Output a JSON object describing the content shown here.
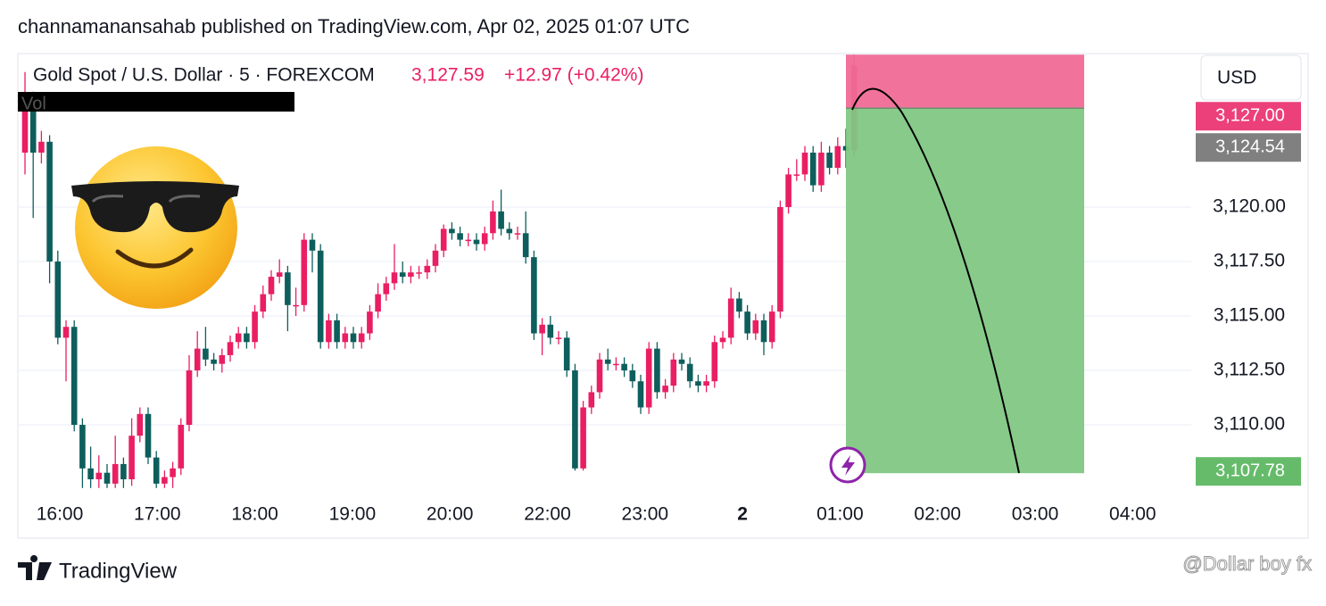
{
  "header": {
    "title": "channamanansahab published on TradingView.com, Apr 02, 2025 01:07 UTC"
  },
  "footer": {
    "brand": "TradingView",
    "watermark": "@Dollar boy fx"
  },
  "chart_data": {
    "type": "candlestick",
    "symbol": "Gold Spot / U.S. Dollar · 5 · FOREXCOM",
    "last_price": "3,127.59",
    "change": "+12.97 (+0.42%)",
    "volume_label": "Vol",
    "currency": "USD",
    "time_labels": [
      "16:00",
      "17:00",
      "18:00",
      "19:00",
      "20:00",
      "22:00",
      "23:00",
      "2",
      "01:00",
      "02:00",
      "03:00",
      "04:00"
    ],
    "up_color": "#e91e63",
    "down_color": "#0d5e5c",
    "grid": true,
    "ylim": [
      3107.05,
      3127.05
    ],
    "yticks": [
      {
        "value": 3110,
        "label": "3,110.00"
      },
      {
        "value": 3112.5,
        "label": "3,112.50"
      },
      {
        "value": 3115,
        "label": "3,115.00"
      },
      {
        "value": 3117.5,
        "label": "3,117.50"
      },
      {
        "value": 3120,
        "label": "3,120.00"
      }
    ],
    "open": [
      3122.5,
      3125.0,
      3122.5,
      3123.0,
      3117.5,
      3114.0,
      3114.5,
      3110.0,
      3108.0,
      3107.5,
      3107.8,
      3107.3,
      3108.2,
      3107.5,
      3109.5,
      3110.5,
      3108.5,
      3107.3,
      3107.6,
      3108.0,
      3110.0,
      3112.5,
      3113.5,
      3113.0,
      3112.8,
      3113.2,
      3113.8,
      3114.2,
      3113.8,
      3115.2,
      3116.0,
      3116.8,
      3117.0,
      3115.5,
      3115.5,
      3118.5,
      3118.0,
      3113.8,
      3114.8,
      3113.8,
      3114.2,
      3113.8,
      3114.2,
      3115.2,
      3116.0,
      3116.5,
      3117.0,
      3116.8,
      3117.0,
      3117.0,
      3117.3,
      3118.0,
      3119.0,
      3118.8,
      3118.5,
      3118.5,
      3118.3,
      3118.8,
      3119.8,
      3119.0,
      3118.8,
      3118.8,
      3117.7,
      3114.2,
      3114.6,
      3114.0,
      3114.0,
      3112.5,
      3108.0,
      3110.8,
      3111.5,
      3113.0,
      3112.8,
      3112.8,
      3112.5,
      3112.0,
      3110.8,
      3113.5,
      3111.5,
      3111.8,
      3113.0,
      3112.8,
      3112.0,
      3111.8,
      3112.0,
      3113.8,
      3114.0,
      3115.8,
      3115.2,
      3114.2,
      3114.8,
      3113.8,
      3115.2,
      3120.0,
      3121.5,
      3121.5,
      3122.5,
      3121.0,
      3122.5,
      3121.8,
      3122.8,
      3122.6
    ],
    "high": [
      3126.2,
      3125.3,
      3123.5,
      3123.3,
      3118.0,
      3114.8,
      3114.8,
      3110.3,
      3109.0,
      3108.6,
      3108.2,
      3109.5,
      3108.5,
      3110.3,
      3110.8,
      3110.8,
      3108.8,
      3107.9,
      3108.3,
      3110.3,
      3113.2,
      3114.3,
      3114.5,
      3113.3,
      3113.5,
      3114.1,
      3114.5,
      3114.5,
      3115.5,
      3116.4,
      3117.1,
      3117.6,
      3117.3,
      3116.3,
      3118.8,
      3118.8,
      3118.3,
      3115.1,
      3115.1,
      3114.5,
      3114.5,
      3114.5,
      3115.5,
      3116.5,
      3116.8,
      3118.3,
      3117.5,
      3117.3,
      3117.3,
      3117.6,
      3118.3,
      3119.2,
      3119.3,
      3119.1,
      3118.8,
      3118.8,
      3119.1,
      3120.3,
      3120.8,
      3119.3,
      3119.1,
      3119.8,
      3118.0,
      3114.9,
      3115.0,
      3114.3,
      3114.3,
      3112.8,
      3111.1,
      3111.8,
      3113.3,
      3113.5,
      3113.1,
      3113.1,
      3112.8,
      3112.3,
      3113.8,
      3113.8,
      3112.1,
      3113.3,
      3113.3,
      3113.1,
      3112.3,
      3112.3,
      3114.1,
      3114.3,
      3116.3,
      3116.1,
      3115.5,
      3115.1,
      3115.1,
      3115.5,
      3120.3,
      3121.8,
      3122.2,
      3122.8,
      3122.8,
      3123.0,
      3122.8,
      3123.2,
      3123.6,
      3127.0
    ],
    "low": [
      3121.5,
      3119.5,
      3122.0,
      3116.5,
      3113.7,
      3112.0,
      3109.7,
      3107.1,
      3107.1,
      3107.1,
      3107.1,
      3107.1,
      3107.1,
      3107.2,
      3109.2,
      3108.2,
      3107.1,
      3107.1,
      3107.1,
      3107.7,
      3109.7,
      3112.2,
      3112.7,
      3112.5,
      3112.4,
      3112.9,
      3113.5,
      3113.5,
      3113.5,
      3114.9,
      3115.7,
      3116.5,
      3114.3,
      3115.0,
      3115.2,
      3117.0,
      3113.5,
      3113.5,
      3113.5,
      3113.5,
      3113.5,
      3113.5,
      3113.9,
      3114.9,
      3115.7,
      3116.2,
      3116.5,
      3116.5,
      3116.7,
      3116.7,
      3117.0,
      3117.7,
      3118.5,
      3118.2,
      3118.2,
      3118.0,
      3118.0,
      3118.5,
      3118.7,
      3118.5,
      3118.5,
      3117.4,
      3113.9,
      3113.2,
      3113.7,
      3113.7,
      3112.2,
      3107.9,
      3107.9,
      3110.5,
      3111.2,
      3112.5,
      3112.5,
      3112.2,
      3111.7,
      3110.5,
      3110.5,
      3111.2,
      3111.2,
      3111.5,
      3112.5,
      3111.7,
      3111.5,
      3111.5,
      3111.7,
      3113.5,
      3113.7,
      3114.9,
      3113.9,
      3113.9,
      3113.2,
      3113.5,
      3114.9,
      3119.7,
      3121.2,
      3121.2,
      3120.7,
      3120.7,
      3121.5,
      3121.5,
      3121.8,
      3122.3
    ],
    "close": [
      3125.0,
      3122.5,
      3123.0,
      3117.5,
      3114.0,
      3114.5,
      3110.0,
      3108.0,
      3107.5,
      3107.8,
      3107.3,
      3108.2,
      3107.5,
      3109.5,
      3110.5,
      3108.5,
      3107.3,
      3107.6,
      3108.0,
      3110.0,
      3112.5,
      3113.5,
      3113.0,
      3112.8,
      3113.2,
      3113.8,
      3114.2,
      3113.8,
      3115.2,
      3116.0,
      3116.8,
      3117.0,
      3115.5,
      3115.5,
      3118.5,
      3118.0,
      3113.8,
      3114.8,
      3113.8,
      3114.2,
      3113.8,
      3114.2,
      3115.2,
      3116.0,
      3116.5,
      3117.0,
      3116.8,
      3117.0,
      3117.0,
      3117.3,
      3118.0,
      3119.0,
      3118.8,
      3118.5,
      3118.5,
      3118.3,
      3118.8,
      3119.8,
      3119.0,
      3118.8,
      3118.8,
      3117.7,
      3114.2,
      3114.6,
      3114.0,
      3114.0,
      3112.5,
      3108.0,
      3110.8,
      3111.5,
      3113.0,
      3112.8,
      3112.8,
      3112.5,
      3112.0,
      3110.8,
      3113.5,
      3111.5,
      3111.8,
      3113.0,
      3112.8,
      3112.0,
      3111.8,
      3112.0,
      3113.8,
      3114.0,
      3115.8,
      3115.2,
      3114.2,
      3114.8,
      3113.8,
      3115.2,
      3120.0,
      3121.5,
      3121.5,
      3122.5,
      3121.0,
      3122.5,
      3121.8,
      3122.8,
      3122.6,
      3126.5
    ],
    "position": {
      "stop": {
        "value": 3127,
        "label": "3,127.00",
        "color": "#f06b97"
      },
      "entry": {
        "value": 3124.54,
        "label": "3,124.54",
        "color": "#808080"
      },
      "target": {
        "value": 3107.78,
        "label": "3,107.78",
        "color": "#81c784"
      }
    }
  }
}
